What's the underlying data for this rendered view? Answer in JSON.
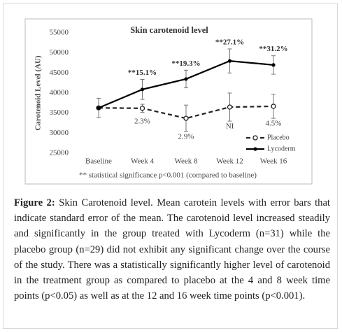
{
  "chart_data": {
    "type": "line",
    "title": "Skin carotenoid level",
    "y_label": "Carotenoid Level (AU)",
    "note": "** statistical significance p<0.001 (compared to baseline)",
    "categories": [
      "Baseline",
      "Week 4",
      "Week 8",
      "Week 12",
      "Week 16"
    ],
    "ylim": [
      25000,
      55000
    ],
    "yticks": [
      25000,
      30000,
      35000,
      40000,
      45000,
      50000,
      55000
    ],
    "legend": "lower right",
    "series": [
      {
        "name": "Placebo",
        "color": "#222222",
        "style": "dashed",
        "marker": "open-circle",
        "values": [
          36300,
          36200,
          33700,
          36500,
          36700
        ],
        "errors": [
          2400,
          1000,
          3300,
          3500,
          3000
        ],
        "annotations": [
          null,
          "2.3%",
          "2.9%",
          "NI",
          "4.5%"
        ]
      },
      {
        "name": "Lycoderm",
        "color": "#000000",
        "style": "solid",
        "marker": "dot",
        "values": [
          36300,
          40900,
          43500,
          48000,
          47000
        ],
        "errors": [
          2400,
          2500,
          2200,
          3000,
          2300
        ],
        "annotations": [
          null,
          "**15.1%",
          "**19.3%",
          "**27.1%",
          "**31.2%"
        ]
      }
    ]
  },
  "caption": {
    "label": "Figure 2:",
    "text": "Skin Carotenoid level. Mean carotein levels with error bars that indicate standard error of the mean. The carotenoid level increased steadily and significantly in the group treated with Lycoderm (n=31) while the placebo group (n=29) did not exhibit any significant change over the course of the study. There was a statistically significantly higher level of carotenoid in the treatment group as compared to placebo at the 4 and 8 week time points (p<0.05) as well as at the 12 and 16 week time points (p<0.001)."
  }
}
